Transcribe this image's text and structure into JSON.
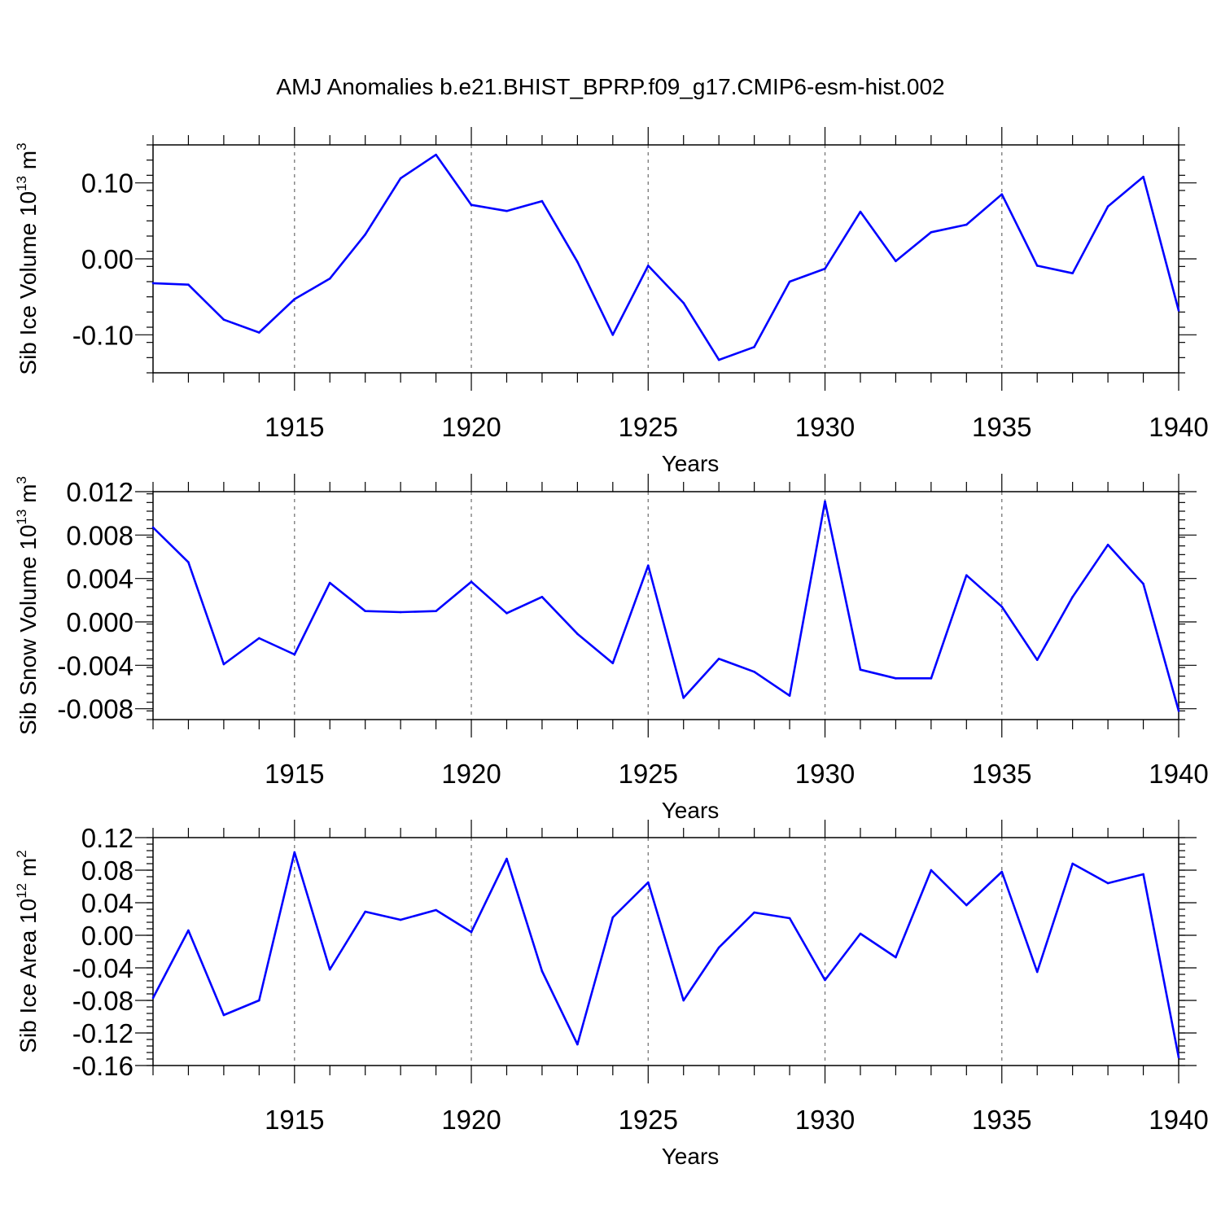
{
  "chart_data": [
    {
      "type": "line",
      "title": "AMJ Anomalies b.e21.BHIST_BPRP.f09_g17.CMIP6-esm-hist.002",
      "xlabel": "Years",
      "ylabel_text": "Sib Ice Volume 10",
      "ylabel_sup": "13",
      "ylabel_unit": " m",
      "ylabel_unit_sup": "3",
      "x": [
        1911,
        1912,
        1913,
        1914,
        1915,
        1916,
        1917,
        1918,
        1919,
        1920,
        1921,
        1922,
        1923,
        1924,
        1925,
        1926,
        1927,
        1928,
        1929,
        1930,
        1931,
        1932,
        1933,
        1934,
        1935,
        1936,
        1937,
        1938,
        1939,
        1940
      ],
      "values": [
        -0.032,
        -0.034,
        -0.08,
        -0.097,
        -0.053,
        -0.026,
        0.032,
        0.106,
        0.137,
        0.071,
        0.063,
        0.076,
        -0.004,
        -0.1,
        -0.009,
        -0.058,
        -0.133,
        -0.116,
        -0.03,
        -0.013,
        0.062,
        -0.003,
        0.035,
        0.045,
        0.085,
        -0.009,
        -0.019,
        0.069,
        0.108,
        -0.068
      ],
      "xlim": [
        1911,
        1940
      ],
      "ylim": [
        -0.15,
        0.15
      ],
      "yticks": [
        -0.1,
        0.0,
        0.1
      ],
      "ytick_labels": [
        "-0.10",
        "0.00",
        "0.10"
      ],
      "xticks": [
        1915,
        1920,
        1925,
        1930,
        1935,
        1940
      ],
      "xtick_labels": [
        "1915",
        "1920",
        "1925",
        "1930",
        "1935",
        "1940"
      ],
      "grid": "vertical dashed at major x ticks",
      "color": "#0000ff"
    },
    {
      "type": "line",
      "xlabel": "Years",
      "ylabel_text": "Sib Snow Volume 10",
      "ylabel_sup": "13",
      "ylabel_unit": " m",
      "ylabel_unit_sup": "3",
      "x": [
        1911,
        1912,
        1913,
        1914,
        1915,
        1916,
        1917,
        1918,
        1919,
        1920,
        1921,
        1922,
        1923,
        1924,
        1925,
        1926,
        1927,
        1928,
        1929,
        1930,
        1931,
        1932,
        1933,
        1934,
        1935,
        1936,
        1937,
        1938,
        1939,
        1940
      ],
      "values": [
        0.0087,
        0.0055,
        -0.0039,
        -0.0015,
        -0.003,
        0.0036,
        0.001,
        0.0009,
        0.001,
        0.0037,
        0.0008,
        0.0023,
        -0.0011,
        -0.0038,
        0.0052,
        -0.007,
        -0.0034,
        -0.0046,
        -0.0068,
        0.0111,
        -0.0044,
        -0.0052,
        -0.0052,
        0.0043,
        0.0014,
        -0.0035,
        0.0023,
        0.0071,
        0.0035,
        -0.0082
      ],
      "xlim": [
        1911,
        1940
      ],
      "ylim": [
        -0.009,
        0.012
      ],
      "yticks": [
        -0.008,
        -0.004,
        0.0,
        0.004,
        0.008,
        0.012
      ],
      "ytick_labels": [
        "-0.008",
        "-0.004",
        "0.000",
        "0.004",
        "0.008",
        "0.012"
      ],
      "xticks": [
        1915,
        1920,
        1925,
        1930,
        1935,
        1940
      ],
      "xtick_labels": [
        "1915",
        "1920",
        "1925",
        "1930",
        "1935",
        "1940"
      ],
      "grid": "vertical dashed at major x ticks",
      "color": "#0000ff"
    },
    {
      "type": "line",
      "xlabel": "Years",
      "ylabel_text": "Sib Ice Area 10",
      "ylabel_sup": "12",
      "ylabel_unit": " m",
      "ylabel_unit_sup": "2",
      "x": [
        1911,
        1912,
        1913,
        1914,
        1915,
        1916,
        1917,
        1918,
        1919,
        1920,
        1921,
        1922,
        1923,
        1924,
        1925,
        1926,
        1927,
        1928,
        1929,
        1930,
        1931,
        1932,
        1933,
        1934,
        1935,
        1936,
        1937,
        1938,
        1939,
        1940
      ],
      "values": [
        -0.077,
        0.006,
        -0.098,
        -0.08,
        0.102,
        -0.042,
        0.029,
        0.019,
        0.031,
        0.004,
        0.094,
        -0.044,
        -0.134,
        0.022,
        0.065,
        -0.08,
        -0.015,
        0.028,
        0.021,
        -0.055,
        0.002,
        -0.027,
        0.08,
        0.037,
        0.078,
        -0.045,
        0.088,
        0.064,
        0.075,
        -0.15
      ],
      "xlim": [
        1911,
        1940
      ],
      "ylim": [
        -0.16,
        0.12
      ],
      "yticks": [
        -0.16,
        -0.12,
        -0.08,
        -0.04,
        0.0,
        0.04,
        0.08,
        0.12
      ],
      "ytick_labels": [
        "-0.16",
        "-0.12",
        "-0.08",
        "-0.04",
        "0.00",
        "0.04",
        "0.08",
        "0.12"
      ],
      "xticks": [
        1915,
        1920,
        1925,
        1930,
        1935,
        1940
      ],
      "xtick_labels": [
        "1915",
        "1920",
        "1925",
        "1930",
        "1935",
        "1940"
      ],
      "grid": "vertical dashed at major x ticks",
      "color": "#0000ff"
    }
  ]
}
